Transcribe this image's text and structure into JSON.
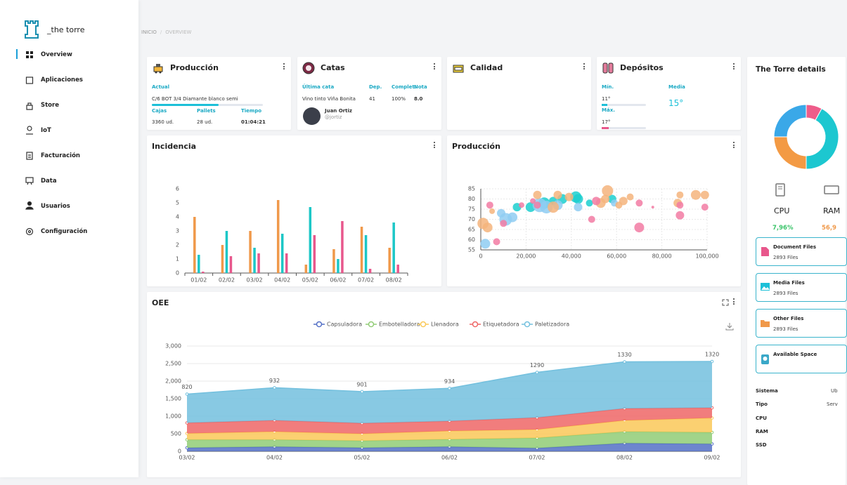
{
  "sidebar": {
    "brand": "_the torre",
    "nav": [
      "Overview",
      "Aplicaciones",
      "Store",
      "IoT",
      "Facturación",
      "Data",
      "Usuarios",
      "Configuración"
    ]
  },
  "breadcrumb": [
    "INICIO",
    "OVERVIEW"
  ],
  "produccion": {
    "title": "Producción",
    "label": "Actual",
    "product": "C/6 BOT 3/4 Diamante blanco semi",
    "progress": 60,
    "columns": [
      "Cajas",
      "Pallets",
      "Tiempo"
    ],
    "values": [
      "3360 ud.",
      "28 ud.",
      "01:04:21"
    ]
  },
  "catas": {
    "title": "Catas",
    "columns": [
      "Última cata",
      "Dep.",
      "Complet.",
      "Nota"
    ],
    "values": [
      "Vino tinto Viña Bonita",
      "41",
      "100%",
      "8.0"
    ],
    "user": {
      "name": "Juan Ortiz",
      "handle": "@jortiz"
    }
  },
  "calidad": {
    "title": "Calidad"
  },
  "depositos": {
    "title": "Depósitos",
    "min_label": "Mín.",
    "min": "11°",
    "max_label": "Máx.",
    "max": "17°",
    "media_label": "Media",
    "media": "15°"
  },
  "details": {
    "title": "The Torre details",
    "stats": [
      {
        "label": "CPU",
        "value": "7,96%"
      },
      {
        "label": "RAM",
        "value": "56,9"
      }
    ],
    "files": [
      {
        "name": "Document Files",
        "count": "2893 Files"
      },
      {
        "name": "Media Files",
        "count": "2893 Files"
      },
      {
        "name": "Other Files",
        "count": "2893 Files"
      },
      {
        "name": "Available Space"
      }
    ],
    "specs": [
      {
        "label": "Sistema",
        "value": "Ub"
      },
      {
        "label": "Tipo",
        "value": "Serv"
      },
      {
        "label": "CPU"
      },
      {
        "label": "RAM"
      },
      {
        "label": "SSD"
      }
    ]
  },
  "chart_data": [
    {
      "type": "bar",
      "title": "Incidencia",
      "categories": [
        "01/02",
        "02/02",
        "03/02",
        "04/02",
        "05/02",
        "06/02",
        "07/02",
        "08/02"
      ],
      "series": [
        {
          "color": "#f0994a",
          "values": [
            4,
            2,
            3,
            5.2,
            0.6,
            1.7,
            3.3,
            1.8
          ]
        },
        {
          "color": "#1cc7c7",
          "values": [
            1.3,
            3,
            1.8,
            2.8,
            4.7,
            1,
            2.7,
            3.6
          ]
        },
        {
          "color": "#e8578c",
          "values": [
            0.1,
            1.2,
            1.4,
            1.4,
            2.7,
            3.7,
            0.3,
            0.6
          ]
        }
      ],
      "ylim": [
        0,
        6
      ],
      "yticks": [
        0,
        1,
        2,
        3,
        4,
        5,
        6
      ],
      "grid": false
    },
    {
      "type": "scatter",
      "title": "Producción",
      "grid": true,
      "xlim": [
        0,
        100000
      ],
      "xticks": [
        0,
        {
          "value": 20000,
          "label": "20,000"
        },
        {
          "value": 40000,
          "label": "40,000"
        },
        {
          "value": 60000,
          "label": "60,000"
        },
        {
          "value": 80000,
          "label": "80,000"
        },
        {
          "value": 100000,
          "label": "100,000"
        }
      ],
      "ylim": [
        55,
        85
      ],
      "yticks": [
        55,
        60,
        65,
        70,
        75,
        80,
        85
      ],
      "series": [
        {
          "color": "#1ccfcf",
          "x": [
            16000,
            22000,
            28000,
            32000,
            36000,
            42000,
            43000,
            48000,
            58000
          ],
          "y": [
            76,
            76,
            78,
            79,
            80,
            81,
            80,
            78,
            80
          ],
          "sizes": [
            6,
            7,
            8,
            6,
            7,
            8,
            7,
            5,
            6
          ]
        },
        {
          "color": "#8fcdf2",
          "x": [
            2000,
            9000,
            11000,
            14000,
            26000,
            29000,
            34000,
            43000,
            59000
          ],
          "y": [
            58,
            73,
            70,
            71,
            77,
            76,
            77,
            76,
            78
          ],
          "sizes": [
            7,
            6,
            9,
            7,
            10,
            9,
            7,
            6,
            5
          ]
        },
        {
          "color": "#f5b47c",
          "x": [
            1000,
            3000,
            5000,
            25000,
            32000,
            34000,
            39000,
            53000,
            55000,
            56000,
            61000,
            63000,
            66000,
            87000,
            88000,
            95000,
            99000
          ],
          "y": [
            68,
            66,
            74,
            82,
            76,
            82,
            81,
            78,
            80,
            84,
            77,
            79,
            81,
            78,
            82,
            82,
            82
          ],
          "sizes": [
            8,
            7,
            4,
            6,
            8,
            6,
            6,
            7,
            6,
            8,
            5,
            6,
            5,
            6,
            5,
            7,
            6
          ]
        },
        {
          "color": "#f27ba3",
          "x": [
            4000,
            7000,
            10000,
            18000,
            23000,
            25000,
            49000,
            51000,
            70000,
            70000,
            76000,
            88000,
            88000,
            99000
          ],
          "y": [
            77,
            59,
            68,
            77,
            79,
            77,
            70,
            79,
            78,
            66,
            76,
            77,
            72,
            76
          ],
          "sizes": [
            5,
            5,
            5,
            4,
            4,
            5,
            5,
            6,
            5,
            7,
            2,
            5,
            6,
            5
          ]
        }
      ]
    },
    {
      "type": "area",
      "title": "OEE",
      "categories": [
        "03/02",
        "04/02",
        "05/02",
        "06/02",
        "07/02",
        "08/02",
        "09/02"
      ],
      "ylim": [
        0,
        3000
      ],
      "yticks": [
        0,
        500,
        {
          "value": 1000,
          "label": "1,000"
        },
        {
          "value": 1500,
          "label": "1,500"
        },
        {
          "value": 2000,
          "label": "2,000"
        },
        {
          "value": 2500,
          "label": "2,500"
        },
        {
          "value": 3000,
          "label": "3,000"
        }
      ],
      "grid": true,
      "stacked": true,
      "series": [
        {
          "name": "Capsuladora",
          "color": "#5470c6",
          "values": [
            100,
            130,
            100,
            130,
            90,
            230,
            210
          ]
        },
        {
          "name": "Embotelladora",
          "color": "#91cc75",
          "values": [
            230,
            200,
            200,
            210,
            290,
            330,
            330
          ]
        },
        {
          "name": "Llenadora",
          "color": "#fac858",
          "values": [
            180,
            230,
            200,
            240,
            240,
            320,
            410
          ]
        },
        {
          "name": "Etiquetadora",
          "color": "#ee6666",
          "values": [
            300,
            320,
            300,
            280,
            340,
            340,
            290
          ]
        },
        {
          "name": "Paletizadora",
          "color": "#73c0de",
          "values": [
            820,
            932,
            901,
            934,
            1290,
            1330,
            1320
          ],
          "labels": true
        }
      ]
    },
    {
      "type": "pie",
      "donut": true,
      "values": [
        8,
        42,
        25,
        25
      ],
      "colors": [
        "#ee5c8a",
        "#1cc7d0",
        "#f39a44",
        "#3aa8e8"
      ]
    }
  ]
}
